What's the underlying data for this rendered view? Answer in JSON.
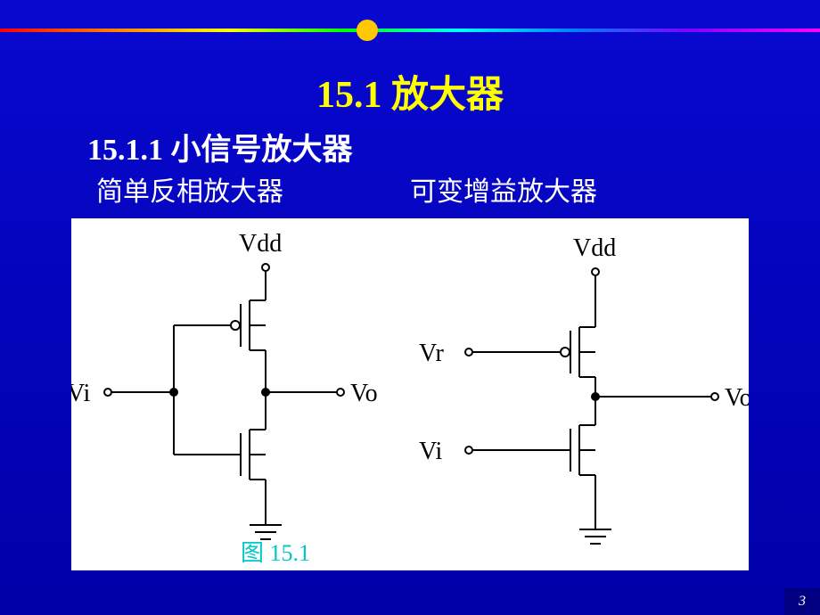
{
  "title": "15.1  放大器",
  "subtitle": "15.1.1  小信号放大器",
  "label_left": "简单反相放大器",
  "label_right": "可变增益放大器",
  "fig_caption": "图  15.1",
  "page_number": "3",
  "circuit1": {
    "vdd": "Vdd",
    "vi": "Vi",
    "vo": "Vo"
  },
  "circuit2": {
    "vdd": "Vdd",
    "vr": "Vr",
    "vi": "Vi",
    "vo": "Vo"
  },
  "style": {
    "stroke": "#000000",
    "stroke_width": 2,
    "fill_bg": "#ffffff",
    "text_color": "#000000",
    "text_size": 28,
    "font": "Times New Roman, serif"
  }
}
